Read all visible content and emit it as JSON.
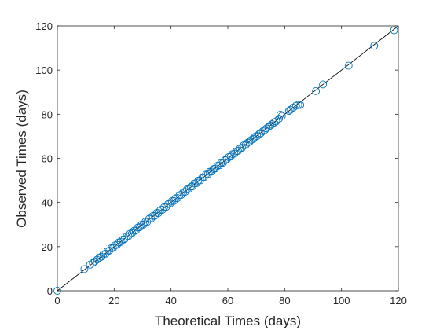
{
  "chart_data": {
    "type": "scatter",
    "title": "",
    "xlabel": "Theoretical Times (days)",
    "ylabel": "Observed Times (days)",
    "xlim": [
      0,
      120
    ],
    "ylim": [
      0,
      120
    ],
    "xticks": [
      "0",
      "20",
      "40",
      "60",
      "80",
      "100",
      "120"
    ],
    "yticks": [
      "0",
      "20",
      "40",
      "60",
      "80",
      "100",
      "120"
    ],
    "grid": false,
    "legend": "none",
    "marker_color": "#0072BD",
    "reference_line": {
      "from": [
        0,
        0
      ],
      "to": [
        120,
        120
      ],
      "color": "#000000"
    },
    "points": [
      [
        0,
        0
      ],
      [
        9.5,
        9.8
      ],
      [
        11.5,
        11.8
      ],
      [
        12.5,
        12.6
      ],
      [
        13.2,
        13.3
      ],
      [
        14.0,
        14.1
      ],
      [
        14.8,
        15.0
      ],
      [
        15.5,
        15.4
      ],
      [
        16.2,
        16.5
      ],
      [
        17.0,
        16.8
      ],
      [
        17.6,
        17.9
      ],
      [
        18.3,
        18.2
      ],
      [
        19.0,
        19.3
      ],
      [
        19.6,
        19.4
      ],
      [
        20.3,
        20.6
      ],
      [
        21.0,
        20.8
      ],
      [
        21.6,
        21.9
      ],
      [
        22.3,
        22.1
      ],
      [
        23.0,
        23.2
      ],
      [
        23.6,
        23.3
      ],
      [
        24.3,
        24.5
      ],
      [
        25.0,
        24.7
      ],
      [
        25.6,
        25.9
      ],
      [
        26.3,
        26.1
      ],
      [
        27.0,
        27.2
      ],
      [
        27.6,
        27.3
      ],
      [
        28.3,
        28.6
      ],
      [
        29.0,
        28.8
      ],
      [
        29.6,
        29.9
      ],
      [
        30.3,
        30.0
      ],
      [
        31.0,
        31.3
      ],
      [
        31.6,
        31.2
      ],
      [
        32.3,
        32.6
      ],
      [
        33.0,
        32.7
      ],
      [
        33.6,
        33.9
      ],
      [
        34.3,
        34.0
      ],
      [
        35.0,
        35.3
      ],
      [
        35.6,
        35.2
      ],
      [
        36.3,
        36.6
      ],
      [
        37.0,
        36.7
      ],
      [
        37.6,
        37.9
      ],
      [
        38.3,
        38.0
      ],
      [
        39.0,
        39.3
      ],
      [
        39.6,
        39.4
      ],
      [
        40.3,
        40.6
      ],
      [
        41.0,
        40.7
      ],
      [
        41.6,
        41.9
      ],
      [
        42.3,
        42.0
      ],
      [
        43.0,
        43.3
      ],
      [
        43.6,
        43.4
      ],
      [
        44.3,
        44.6
      ],
      [
        45.0,
        44.8
      ],
      [
        45.6,
        45.9
      ],
      [
        46.3,
        46.1
      ],
      [
        47.0,
        47.2
      ],
      [
        47.6,
        47.3
      ],
      [
        48.3,
        48.6
      ],
      [
        49.0,
        48.8
      ],
      [
        49.6,
        49.9
      ],
      [
        50.3,
        50.0
      ],
      [
        51.0,
        51.2
      ],
      [
        51.6,
        51.4
      ],
      [
        52.3,
        52.6
      ],
      [
        53.0,
        52.8
      ],
      [
        53.6,
        53.9
      ],
      [
        54.3,
        54.0
      ],
      [
        55.0,
        55.2
      ],
      [
        55.6,
        55.4
      ],
      [
        56.3,
        56.6
      ],
      [
        57.0,
        56.8
      ],
      [
        57.6,
        57.9
      ],
      [
        58.3,
        58.0
      ],
      [
        59.0,
        59.2
      ],
      [
        59.6,
        59.5
      ],
      [
        60.3,
        60.6
      ],
      [
        61.0,
        60.8
      ],
      [
        61.6,
        61.9
      ],
      [
        62.3,
        62.1
      ],
      [
        63.0,
        63.2
      ],
      [
        63.6,
        63.4
      ],
      [
        64.3,
        64.5
      ],
      [
        65.0,
        64.8
      ],
      [
        65.6,
        65.9
      ],
      [
        66.3,
        66.1
      ],
      [
        67.0,
        67.1
      ],
      [
        67.6,
        67.5
      ],
      [
        68.3,
        68.4
      ],
      [
        69.0,
        68.8
      ],
      [
        69.6,
        69.8
      ],
      [
        70.3,
        70.1
      ],
      [
        71.0,
        71.0
      ],
      [
        71.6,
        71.4
      ],
      [
        72.3,
        72.3
      ],
      [
        73.0,
        72.8
      ],
      [
        73.6,
        73.6
      ],
      [
        74.3,
        74.2
      ],
      [
        75.0,
        74.9
      ],
      [
        75.6,
        75.5
      ],
      [
        76.3,
        76.2
      ],
      [
        77.0,
        76.8
      ],
      [
        78.0,
        78.0
      ],
      [
        78.5,
        79.8
      ],
      [
        79.0,
        79.2
      ],
      [
        81.5,
        81.5
      ],
      [
        82.0,
        82.0
      ],
      [
        83.0,
        83.0
      ],
      [
        84.0,
        83.8
      ],
      [
        84.8,
        84.3
      ],
      [
        85.5,
        84.2
      ],
      [
        91.0,
        90.5
      ],
      [
        93.5,
        93.5
      ],
      [
        102.5,
        102.0
      ],
      [
        111.5,
        111.0
      ],
      [
        118.5,
        118.0
      ]
    ]
  }
}
